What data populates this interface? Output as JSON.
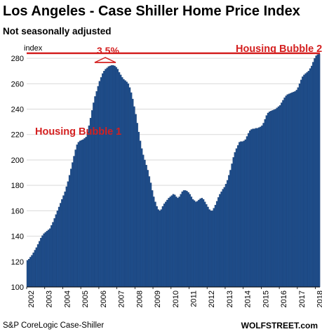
{
  "chart_data": {
    "type": "bar",
    "title": "Los Angeles - Case Shiller Home Price Index",
    "subtitle": "Not seasonally adjusted",
    "ylabel": "index",
    "ylim": [
      100,
      290
    ],
    "yticks": [
      100,
      120,
      140,
      160,
      180,
      200,
      220,
      240,
      260,
      280
    ],
    "xticks": [
      "2002",
      "2003",
      "2004",
      "2005",
      "2006",
      "2007",
      "2008",
      "2009",
      "2010",
      "2011",
      "2012",
      "2013",
      "2014",
      "2015",
      "2016",
      "2017",
      "2018"
    ],
    "x_start": "2002-01",
    "frequency": "monthly",
    "grid": true,
    "reference_line": 284,
    "annotations": [
      "Housing Bubble 1",
      "Housing Bubble 2",
      "3.5%"
    ],
    "source": "S&P CoreLogic Case-Shiller",
    "credit": "WOLFSTREET.com",
    "color": "#1f4e8c",
    "annotation_color": "#d42020",
    "values": [
      121,
      122,
      123.5,
      125,
      127,
      129,
      131,
      133.5,
      136,
      138.5,
      140.5,
      142,
      143,
      144,
      145,
      146,
      148.5,
      151,
      154,
      157,
      160,
      163,
      166,
      169,
      172,
      175,
      179,
      183,
      188,
      193,
      198,
      203,
      208,
      212,
      214,
      215,
      215.5,
      216,
      217,
      218,
      222,
      227,
      233,
      239,
      245,
      250,
      254,
      258,
      262,
      265,
      268,
      270,
      271.5,
      272.5,
      273.5,
      274,
      274.5,
      274.5,
      274,
      273,
      271.5,
      269,
      267,
      265,
      263.5,
      262.5,
      261.5,
      260,
      257,
      253,
      248,
      242,
      236,
      229,
      222,
      215,
      209,
      204,
      200,
      196,
      192,
      187,
      182,
      176,
      171,
      167,
      163.5,
      161,
      160,
      161,
      163.5,
      165.5,
      167,
      168.5,
      170,
      171,
      172,
      173,
      172.5,
      171,
      170,
      171,
      173,
      175,
      176,
      176,
      175.5,
      174.5,
      173,
      171,
      169,
      168,
      167,
      167.5,
      168.5,
      169.5,
      170,
      169,
      167,
      165,
      163,
      161,
      160,
      160,
      162,
      164.5,
      167.5,
      170.5,
      173,
      175,
      177,
      178.5,
      181,
      184,
      188,
      192,
      197,
      202,
      206,
      209,
      211.5,
      214,
      214.5,
      214.5,
      215,
      216,
      218.5,
      221,
      223,
      224,
      224.5,
      224.5,
      225,
      225,
      225.5,
      226,
      227,
      229,
      232,
      235,
      237,
      238,
      238.5,
      239,
      239.5,
      240,
      241,
      242,
      243,
      245,
      247,
      249,
      250.5,
      251.5,
      252,
      252.5,
      253,
      253.5,
      254,
      255,
      257,
      260,
      263,
      265.5,
      267,
      268,
      269,
      270,
      272,
      274,
      277,
      280,
      282,
      283,
      283.5
    ]
  }
}
